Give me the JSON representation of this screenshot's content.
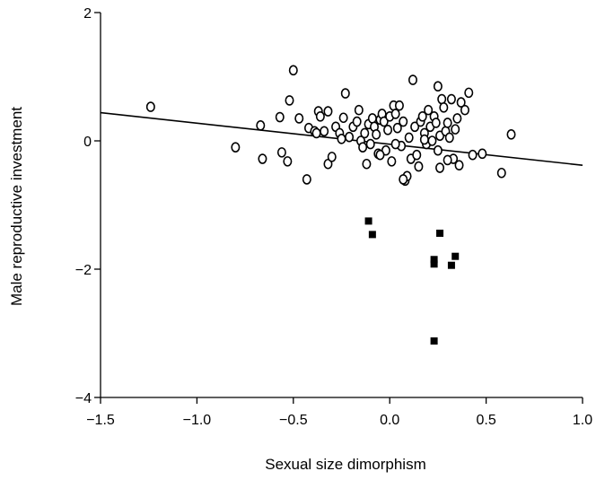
{
  "chart_data": {
    "type": "scatter",
    "title": "",
    "xlabel": "Sexual size dimorphism",
    "ylabel": "Male reproductive investment",
    "xlim": [
      -1.5,
      1.0
    ],
    "ylim": [
      -4,
      2
    ],
    "xticks": [
      -1.5,
      -1.0,
      -0.5,
      0.0,
      0.5,
      1.0
    ],
    "xtick_labels": [
      "−1.5",
      "−1.0",
      "−0.5",
      "0.0",
      "0.5",
      "1.0"
    ],
    "yticks": [
      -4,
      -2,
      0,
      2
    ],
    "ytick_labels": [
      "−4",
      "−2",
      "0",
      "2"
    ],
    "grid": false,
    "trend_line": {
      "x": [
        -1.5,
        1.0
      ],
      "y": [
        0.44,
        -0.38
      ]
    },
    "series": [
      {
        "marker": "open-circle",
        "points": [
          [
            -1.24,
            0.53
          ],
          [
            -0.8,
            -0.1
          ],
          [
            -0.67,
            0.24
          ],
          [
            -0.66,
            -0.28
          ],
          [
            -0.57,
            0.37
          ],
          [
            -0.56,
            -0.18
          ],
          [
            -0.53,
            -0.32
          ],
          [
            -0.52,
            0.63
          ],
          [
            -0.5,
            1.1
          ],
          [
            -0.47,
            0.35
          ],
          [
            -0.43,
            -0.6
          ],
          [
            -0.42,
            0.2
          ],
          [
            -0.39,
            0.15
          ],
          [
            -0.37,
            0.46
          ],
          [
            -0.36,
            0.38
          ],
          [
            -0.34,
            0.15
          ],
          [
            -0.32,
            0.46
          ],
          [
            -0.32,
            -0.36
          ],
          [
            -0.3,
            -0.25
          ],
          [
            -0.28,
            0.22
          ],
          [
            -0.26,
            0.12
          ],
          [
            -0.25,
            0.03
          ],
          [
            -0.24,
            0.36
          ],
          [
            -0.23,
            0.74
          ],
          [
            -0.21,
            0.06
          ],
          [
            -0.19,
            0.22
          ],
          [
            -0.17,
            0.3
          ],
          [
            -0.16,
            0.48
          ],
          [
            -0.15,
            0.0
          ],
          [
            -0.14,
            -0.1
          ],
          [
            -0.13,
            0.12
          ],
          [
            -0.12,
            -0.36
          ],
          [
            -0.11,
            0.26
          ],
          [
            -0.1,
            -0.05
          ],
          [
            -0.09,
            0.35
          ],
          [
            -0.08,
            0.22
          ],
          [
            -0.07,
            0.1
          ],
          [
            -0.06,
            -0.2
          ],
          [
            -0.05,
            0.33
          ],
          [
            -0.04,
            0.42
          ],
          [
            -0.03,
            0.3
          ],
          [
            -0.02,
            -0.15
          ],
          [
            -0.01,
            0.17
          ],
          [
            0.0,
            0.38
          ],
          [
            0.01,
            -0.32
          ],
          [
            0.02,
            0.55
          ],
          [
            0.03,
            0.42
          ],
          [
            0.04,
            0.2
          ],
          [
            0.05,
            0.55
          ],
          [
            0.06,
            -0.08
          ],
          [
            0.07,
            0.3
          ],
          [
            0.08,
            -0.62
          ],
          [
            0.09,
            -0.55
          ],
          [
            0.1,
            0.05
          ],
          [
            0.11,
            -0.28
          ],
          [
            0.12,
            0.95
          ],
          [
            0.13,
            0.22
          ],
          [
            0.14,
            -0.22
          ],
          [
            0.15,
            -0.4
          ],
          [
            0.16,
            0.3
          ],
          [
            0.17,
            0.38
          ],
          [
            0.18,
            0.12
          ],
          [
            0.19,
            -0.05
          ],
          [
            0.2,
            0.48
          ],
          [
            0.21,
            0.22
          ],
          [
            0.22,
            0.0
          ],
          [
            0.23,
            0.38
          ],
          [
            0.24,
            0.28
          ],
          [
            0.25,
            -0.15
          ],
          [
            0.26,
            0.08
          ],
          [
            0.27,
            0.65
          ],
          [
            0.28,
            0.52
          ],
          [
            0.29,
            0.15
          ],
          [
            0.3,
            0.28
          ],
          [
            0.31,
            0.05
          ],
          [
            0.32,
            0.65
          ],
          [
            0.33,
            -0.28
          ],
          [
            0.34,
            0.18
          ],
          [
            0.35,
            0.35
          ],
          [
            0.36,
            -0.38
          ],
          [
            0.37,
            0.6
          ],
          [
            0.39,
            0.48
          ],
          [
            0.41,
            0.75
          ],
          [
            0.43,
            -0.22
          ],
          [
            0.48,
            -0.2
          ],
          [
            0.58,
            -0.5
          ],
          [
            0.63,
            0.1
          ],
          [
            0.26,
            -0.42
          ],
          [
            0.25,
            0.85
          ],
          [
            -0.05,
            -0.22
          ],
          [
            0.07,
            -0.6
          ],
          [
            0.18,
            0.02
          ],
          [
            0.3,
            -0.3
          ],
          [
            -0.38,
            0.12
          ],
          [
            0.03,
            -0.05
          ]
        ]
      },
      {
        "marker": "filled-square",
        "points": [
          [
            -0.11,
            -1.25
          ],
          [
            -0.09,
            -1.46
          ],
          [
            0.23,
            -1.85
          ],
          [
            0.23,
            -1.92
          ],
          [
            0.26,
            -1.44
          ],
          [
            0.32,
            -1.94
          ],
          [
            0.34,
            -1.8
          ],
          [
            0.23,
            -3.12
          ]
        ]
      }
    ]
  }
}
